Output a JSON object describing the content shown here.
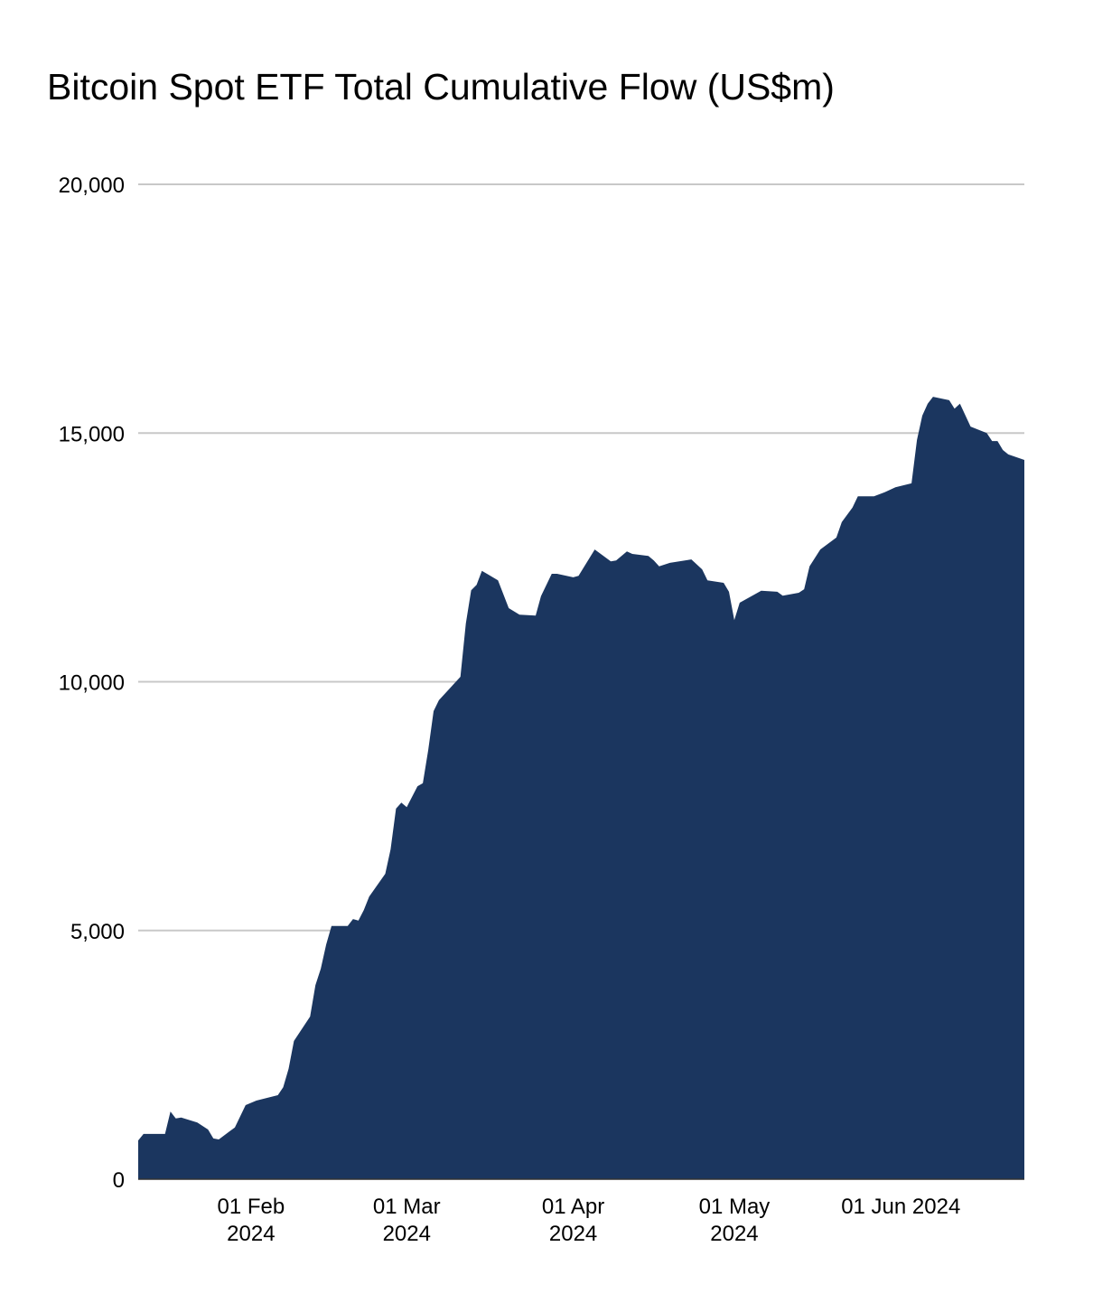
{
  "chart_data": {
    "type": "area",
    "title": "Bitcoin Spot ETF Total Cumulative Flow (US$m)",
    "xlabel": "",
    "ylabel": "",
    "ylim": [
      0,
      20000
    ],
    "xlim": [
      "2024-01-11",
      "2024-06-24"
    ],
    "grid": true,
    "legend": "none",
    "fill_color": "#1b365f",
    "y_ticks": [
      {
        "value": 0,
        "label": "0"
      },
      {
        "value": 5000,
        "label": "5,000"
      },
      {
        "value": 10000,
        "label": "10,000"
      },
      {
        "value": 15000,
        "label": "15,000"
      },
      {
        "value": 20000,
        "label": "20,000"
      }
    ],
    "x_ticks": [
      {
        "date": "2024-02-01",
        "label": [
          "01 Feb",
          "2024"
        ]
      },
      {
        "date": "2024-03-01",
        "label": [
          "01 Mar",
          "2024"
        ]
      },
      {
        "date": "2024-04-01",
        "label": [
          "01 Apr",
          "2024"
        ]
      },
      {
        "date": "2024-05-01",
        "label": [
          "01 May",
          "2024"
        ]
      },
      {
        "date": "2024-06-01",
        "label": [
          "01 Jun 2024"
        ]
      }
    ],
    "series": [
      {
        "x": [
          "2024-01-11",
          "2024-01-12",
          "2024-01-16",
          "2024-01-17",
          "2024-01-18",
          "2024-01-19",
          "2024-01-22",
          "2024-01-24",
          "2024-01-25",
          "2024-01-26",
          "2024-01-29",
          "2024-01-31",
          "2024-02-02",
          "2024-02-06",
          "2024-02-07",
          "2024-02-08",
          "2024-02-09",
          "2024-02-12",
          "2024-02-13",
          "2024-02-14",
          "2024-02-15",
          "2024-02-16",
          "2024-02-19",
          "2024-02-20",
          "2024-02-21",
          "2024-02-22",
          "2024-02-23",
          "2024-02-26",
          "2024-02-27",
          "2024-02-28",
          "2024-02-29",
          "2024-03-01",
          "2024-03-03",
          "2024-03-04",
          "2024-03-05",
          "2024-03-06",
          "2024-03-07",
          "2024-03-11",
          "2024-03-12",
          "2024-03-13",
          "2024-03-14",
          "2024-03-15",
          "2024-03-18",
          "2024-03-20",
          "2024-03-22",
          "2024-03-25",
          "2024-03-26",
          "2024-03-28",
          "2024-03-29",
          "2024-04-01",
          "2024-04-02",
          "2024-04-05",
          "2024-04-08",
          "2024-04-09",
          "2024-04-11",
          "2024-04-12",
          "2024-04-15",
          "2024-04-16",
          "2024-04-17",
          "2024-04-19",
          "2024-04-23",
          "2024-04-25",
          "2024-04-26",
          "2024-04-29",
          "2024-04-30",
          "2024-05-01",
          "2024-05-02",
          "2024-05-06",
          "2024-05-09",
          "2024-05-10",
          "2024-05-13",
          "2024-05-14",
          "2024-05-15",
          "2024-05-17",
          "2024-05-20",
          "2024-05-21",
          "2024-05-23",
          "2024-05-24",
          "2024-05-27",
          "2024-05-29",
          "2024-05-31",
          "2024-06-03",
          "2024-06-04",
          "2024-06-05",
          "2024-06-06",
          "2024-06-07",
          "2024-06-10",
          "2024-06-11",
          "2024-06-12",
          "2024-06-14",
          "2024-06-17",
          "2024-06-18",
          "2024-06-19",
          "2024-06-20",
          "2024-06-21",
          "2024-06-24"
        ],
        "values": [
          780,
          910,
          910,
          1360,
          1220,
          1240,
          1140,
          1000,
          820,
          800,
          1040,
          1490,
          1580,
          1690,
          1850,
          2220,
          2780,
          3270,
          3900,
          4230,
          4720,
          5090,
          5090,
          5230,
          5200,
          5410,
          5680,
          6140,
          6630,
          7450,
          7570,
          7480,
          7900,
          7960,
          8630,
          9410,
          9630,
          10100,
          11170,
          11840,
          11950,
          12230,
          12040,
          11480,
          11350,
          11330,
          11720,
          12170,
          12170,
          12100,
          12130,
          12660,
          12420,
          12440,
          12620,
          12570,
          12530,
          12440,
          12320,
          12390,
          12460,
          12260,
          12040,
          11990,
          11810,
          11240,
          11590,
          11830,
          11810,
          11730,
          11790,
          11860,
          12320,
          12660,
          12900,
          13210,
          13500,
          13730,
          13730,
          13810,
          13910,
          13990,
          14860,
          15350,
          15590,
          15730,
          15660,
          15490,
          15590,
          15130,
          15000,
          14840,
          14840,
          14660,
          14570,
          14460
        ]
      }
    ]
  }
}
